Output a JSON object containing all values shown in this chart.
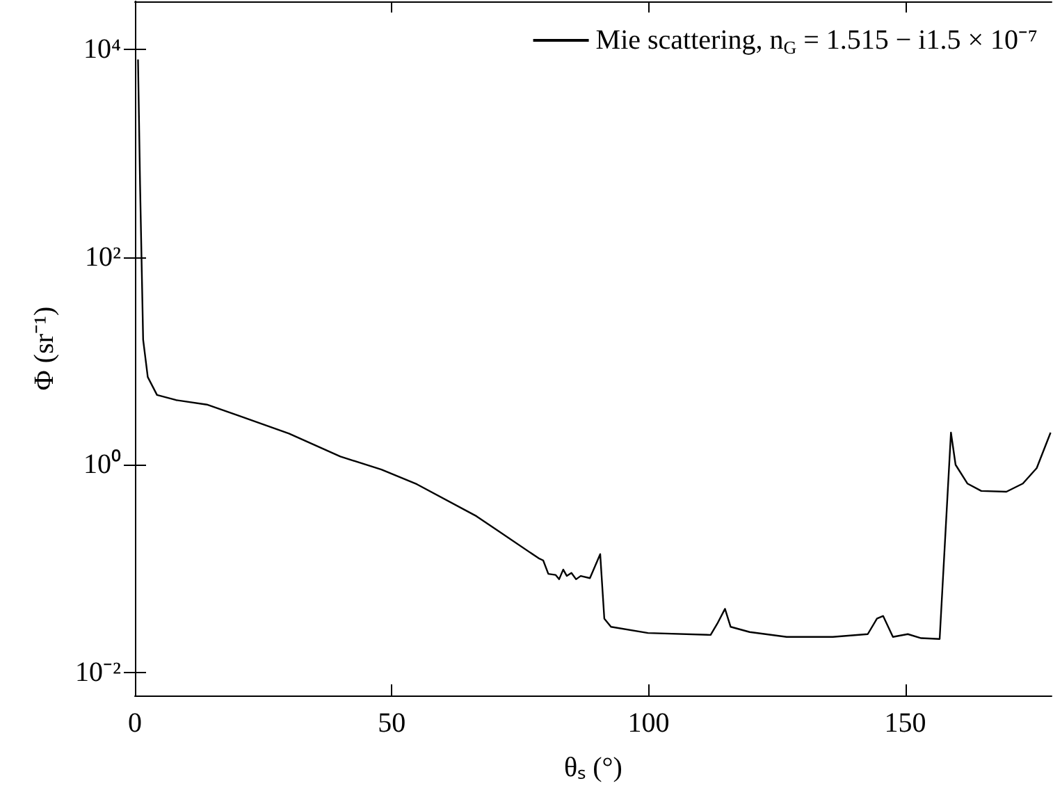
{
  "chart_data": {
    "type": "line",
    "xlabel": "θₛ (°)",
    "ylabel": "Φ (sr⁻¹)",
    "xlim": [
      0,
      178.5
    ],
    "xticks": [
      0,
      50,
      100,
      150
    ],
    "ylim": [
      0.006,
      29000
    ],
    "yticks": [
      {
        "value": 0.01,
        "label": "10⁻²"
      },
      {
        "value": 1,
        "label": "10⁰"
      },
      {
        "value": 100,
        "label": "10²"
      },
      {
        "value": 10000,
        "label": "10⁴"
      }
    ],
    "log": "y",
    "grid": false,
    "legend": "top right",
    "marker": "none",
    "line_style": "solid",
    "series": [
      {
        "name": "Mie scattering, n$_{G}$ = 1.515 − i1.5 × 10⁻⁷",
        "color": "#000000",
        "x": [
          0.6,
          1.0,
          1.6,
          2.5,
          4.3,
          8,
          14,
          20,
          30,
          40,
          48,
          54.9,
          66.5,
          78.6,
          79.5,
          80.5,
          81.9,
          82.6,
          83.4,
          84.1,
          85.0,
          85.9,
          86.8,
          88.6,
          90.6,
          91.4,
          92.7,
          99.9,
          112.1,
          113.4,
          114.9,
          116.0,
          119.7,
          126.9,
          135.9,
          142.7,
          144.5,
          145.7,
          147.6,
          150.5,
          153.1,
          156.7,
          158.9,
          159.8,
          162.1,
          164.8,
          169.7,
          172.9,
          175.6,
          178.3
        ],
        "values": [
          8000,
          500,
          16,
          7,
          4.7,
          4.2,
          3.8,
          3.0,
          2.0,
          1.2,
          0.9,
          0.65,
          0.32,
          0.126,
          0.12,
          0.089,
          0.087,
          0.079,
          0.098,
          0.085,
          0.091,
          0.079,
          0.085,
          0.081,
          0.138,
          0.033,
          0.0275,
          0.024,
          0.023,
          0.0295,
          0.041,
          0.0275,
          0.0245,
          0.022,
          0.022,
          0.0234,
          0.033,
          0.035,
          0.022,
          0.0234,
          0.0214,
          0.021,
          2.04,
          1.0,
          0.66,
          0.56,
          0.55,
          0.66,
          0.93,
          2.04
        ]
      }
    ]
  }
}
